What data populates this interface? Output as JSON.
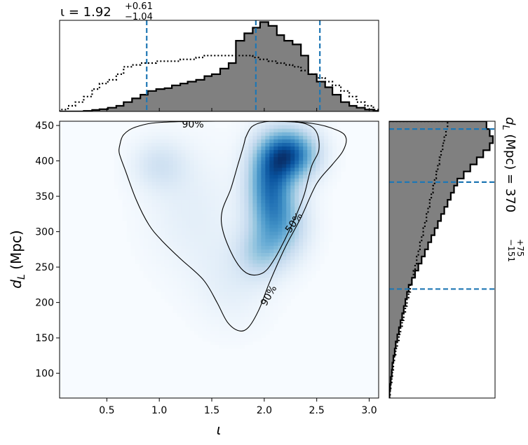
{
  "chart_data": [
    {
      "type": "area",
      "panel": "top-marginal-iota",
      "title": {
        "symbol": "ι",
        "median": "1.92",
        "upper": "+0.61",
        "lower": "−1.04"
      },
      "xlim": [
        0.05,
        3.09
      ],
      "bin_edges": [
        0.05,
        0.13,
        0.2,
        0.28,
        0.36,
        0.43,
        0.51,
        0.59,
        0.66,
        0.74,
        0.82,
        0.89,
        0.97,
        1.05,
        1.12,
        1.2,
        1.27,
        1.35,
        1.43,
        1.5,
        1.58,
        1.66,
        1.73,
        1.81,
        1.89,
        1.96,
        2.04,
        2.12,
        2.19,
        2.27,
        2.35,
        2.42,
        2.5,
        2.58,
        2.65,
        2.73,
        2.81,
        2.88,
        2.96,
        3.04,
        3.09
      ],
      "posterior_counts": [
        0,
        0,
        0,
        0.3,
        0.8,
        1.2,
        2,
        3,
        5,
        7,
        9,
        11,
        12,
        12.5,
        14,
        15,
        16,
        17,
        19,
        20,
        23,
        26,
        38,
        42,
        45,
        48,
        46,
        41,
        38,
        36,
        30,
        20,
        16,
        13,
        9,
        5,
        3,
        2,
        1,
        0.3
      ],
      "prior_counts": [
        1,
        3,
        5,
        8,
        12,
        15,
        17,
        20,
        24,
        25,
        26,
        26,
        27,
        27,
        27,
        28,
        28,
        29,
        30,
        30,
        30,
        30,
        30,
        30,
        29,
        28,
        27,
        26,
        25,
        24,
        22,
        20,
        18,
        16,
        14,
        11,
        8,
        5,
        3,
        1
      ],
      "quantile_lines": [
        0.88,
        1.92,
        2.53
      ],
      "quantile_color": "#1f77b4"
    },
    {
      "type": "heatmap",
      "panel": "joint-iota-dL",
      "xlabel": "ι",
      "ylabel": "d_L (Mpc)",
      "xlim": [
        0.05,
        3.09
      ],
      "ylim": [
        65,
        456
      ],
      "xticks": [
        0.5,
        1.0,
        1.5,
        2.0,
        2.5,
        3.0
      ],
      "xtick_labels": [
        "0.5",
        "1.0",
        "1.5",
        "2.0",
        "2.5",
        "3.0"
      ],
      "yticks": [
        100,
        150,
        200,
        250,
        300,
        350,
        400,
        450
      ],
      "ytick_labels": [
        "100",
        "150",
        "200",
        "250",
        "300",
        "350",
        "400",
        "450"
      ],
      "colormap": "Blues",
      "density_components": [
        {
          "x": 2.25,
          "y": 410,
          "sx": 0.18,
          "sy": 25,
          "w": 1.0
        },
        {
          "x": 2.05,
          "y": 370,
          "sx": 0.15,
          "sy": 40,
          "w": 0.8
        },
        {
          "x": 2.15,
          "y": 310,
          "sx": 0.18,
          "sy": 35,
          "w": 0.55
        },
        {
          "x": 1.95,
          "y": 270,
          "sx": 0.15,
          "sy": 25,
          "w": 0.3
        },
        {
          "x": 1.0,
          "y": 395,
          "sx": 0.18,
          "sy": 25,
          "w": 0.22
        },
        {
          "x": 1.3,
          "y": 330,
          "sx": 0.3,
          "sy": 60,
          "w": 0.12
        },
        {
          "x": 1.7,
          "y": 230,
          "sx": 0.25,
          "sy": 45,
          "w": 0.12
        }
      ],
      "contours": [
        {
          "level": "90%",
          "label": "90%",
          "points": [
            [
              0.62,
              420
            ],
            [
              0.66,
              437
            ],
            [
              0.8,
              449
            ],
            [
              1.1,
              455
            ],
            [
              2.0,
              456
            ],
            [
              2.45,
              453
            ],
            [
              2.7,
              443
            ],
            [
              2.78,
              432
            ],
            [
              2.75,
              414
            ],
            [
              2.65,
              395
            ],
            [
              2.5,
              368
            ],
            [
              2.35,
              320
            ],
            [
              2.2,
              278
            ],
            [
              2.05,
              228
            ],
            [
              1.95,
              190
            ],
            [
              1.85,
              165
            ],
            [
              1.76,
              160
            ],
            [
              1.65,
              172
            ],
            [
              1.55,
              200
            ],
            [
              1.42,
              232
            ],
            [
              1.2,
              262
            ],
            [
              1.02,
              288
            ],
            [
              0.9,
              310
            ],
            [
              0.78,
              345
            ],
            [
              0.68,
              385
            ],
            [
              0.62,
              410
            ],
            [
              0.62,
              420
            ]
          ],
          "labels": [
            {
              "text": "90%",
              "x": 1.32,
              "y": 452,
              "angle": 0
            },
            {
              "text": "90%",
              "x": 2.04,
              "y": 210,
              "angle": -60
            }
          ]
        },
        {
          "level": "50%",
          "label": "50%",
          "points": [
            [
              1.82,
              432
            ],
            [
              1.88,
              448
            ],
            [
              2.0,
              455
            ],
            [
              2.2,
              456
            ],
            [
              2.4,
              452
            ],
            [
              2.5,
              440
            ],
            [
              2.52,
              415
            ],
            [
              2.45,
              392
            ],
            [
              2.38,
              352
            ],
            [
              2.3,
              322
            ],
            [
              2.2,
              290
            ],
            [
              2.1,
              262
            ],
            [
              2.0,
              243
            ],
            [
              1.88,
              239
            ],
            [
              1.78,
              248
            ],
            [
              1.68,
              272
            ],
            [
              1.6,
              305
            ],
            [
              1.6,
              330
            ],
            [
              1.68,
              360
            ],
            [
              1.75,
              395
            ],
            [
              1.8,
              420
            ],
            [
              1.82,
              432
            ]
          ],
          "labels": [
            {
              "text": "50%",
              "x": 2.28,
              "y": 313,
              "angle": -55
            }
          ]
        }
      ]
    },
    {
      "type": "area",
      "panel": "right-marginal-dL",
      "title": {
        "symbol": "d_L (Mpc)",
        "median": "370",
        "upper": "+75",
        "lower": "−151"
      },
      "ylim": [
        65,
        456
      ],
      "bin_edges": [
        65,
        75,
        85,
        95,
        105,
        115,
        125,
        135,
        145,
        155,
        165,
        175,
        185,
        195,
        205,
        215,
        225,
        235,
        245,
        255,
        265,
        275,
        285,
        295,
        305,
        315,
        325,
        335,
        345,
        355,
        365,
        375,
        385,
        395,
        405,
        415,
        425,
        435,
        445,
        456
      ],
      "posterior_counts": [
        0.1,
        0.3,
        0.5,
        0.8,
        1,
        1.3,
        1.7,
        2,
        2.5,
        3,
        3.5,
        4,
        4.5,
        5,
        5.5,
        6,
        7,
        8,
        9,
        10,
        11,
        12,
        13,
        14,
        15,
        16,
        17,
        18,
        19,
        20,
        21,
        23,
        25,
        27,
        29,
        31,
        32,
        31,
        30
      ],
      "prior_counts": [
        0.3,
        0.5,
        0.8,
        1,
        1.3,
        1.6,
        2,
        2.5,
        3,
        3.5,
        4,
        4.5,
        5,
        5.5,
        6,
        6.5,
        7,
        7.5,
        8,
        8.5,
        9,
        9.5,
        10,
        10.5,
        11,
        11.5,
        12,
        12.5,
        13,
        13.5,
        14,
        14.5,
        15,
        15.5,
        16,
        16.5,
        17,
        17.5,
        18
      ],
      "quantile_lines": [
        219,
        370,
        445
      ],
      "quantile_color": "#1f77b4"
    }
  ]
}
